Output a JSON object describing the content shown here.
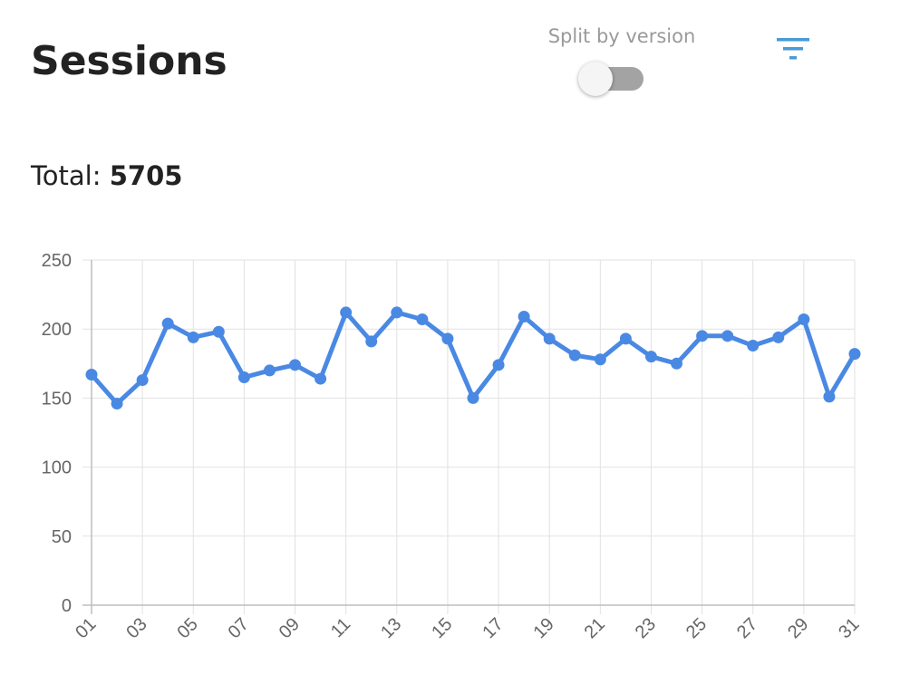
{
  "header": {
    "title": "Sessions",
    "split_label": "Split by version",
    "split_enabled": false,
    "filter_icon": "filter-icon"
  },
  "summary": {
    "total_label": "Total:",
    "total_value": "5705"
  },
  "colors": {
    "line": "#4a89e3",
    "grid": "#e2e2e2",
    "toggle_track": "#a3a3a3",
    "accent": "#4a9ad6"
  },
  "chart_data": {
    "type": "line",
    "x": [
      "01",
      "02",
      "03",
      "04",
      "05",
      "06",
      "07",
      "08",
      "09",
      "10",
      "11",
      "12",
      "13",
      "14",
      "15",
      "16",
      "17",
      "18",
      "19",
      "20",
      "21",
      "22",
      "23",
      "24",
      "25",
      "26",
      "27",
      "28",
      "29",
      "30",
      "31"
    ],
    "series": [
      {
        "values": [
          167,
          146,
          163,
          204,
          194,
          198,
          165,
          170,
          174,
          164,
          212,
          191,
          212,
          207,
          193,
          150,
          174,
          209,
          193,
          181,
          178,
          193,
          180,
          175,
          195,
          195,
          188,
          194,
          207,
          151,
          182
        ]
      }
    ],
    "x_tick_labels": [
      "01",
      "03",
      "05",
      "07",
      "09",
      "11",
      "13",
      "15",
      "17",
      "19",
      "21",
      "23",
      "25",
      "27",
      "29",
      "31"
    ],
    "ylim": [
      0,
      250
    ],
    "y_ticks": [
      0,
      50,
      100,
      150,
      200,
      250
    ],
    "grid": true,
    "legend": "none"
  }
}
